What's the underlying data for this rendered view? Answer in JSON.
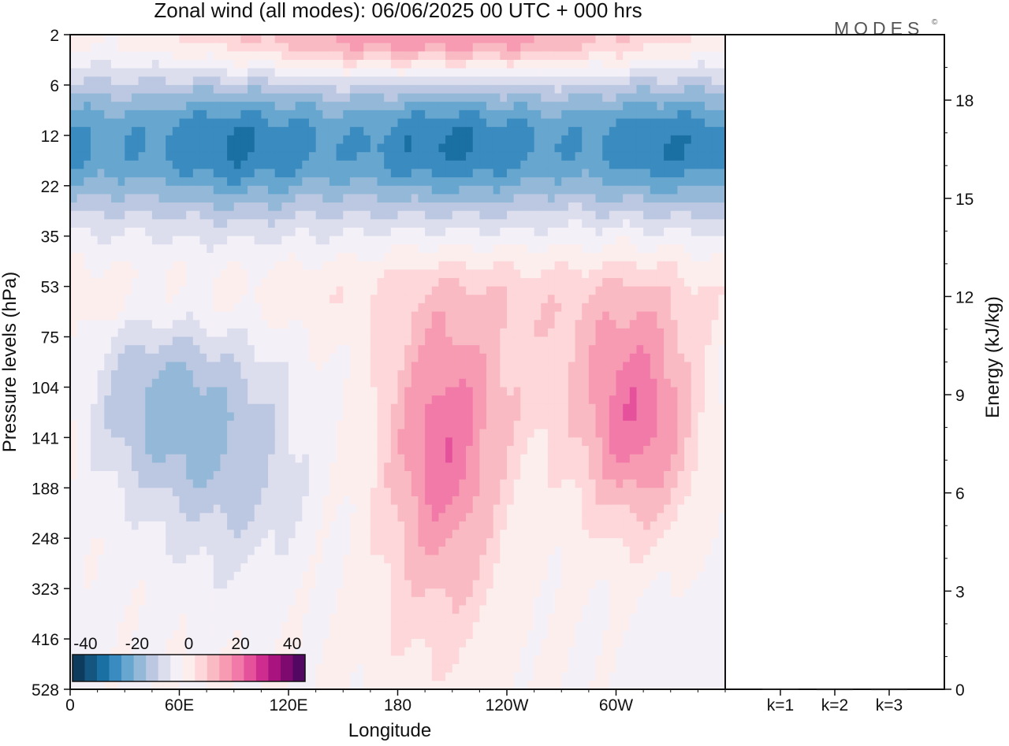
{
  "title": "Zonal wind (all modes):  06/06/2025  00 UTC  + 000 hrs",
  "logo_text": "MODES",
  "logo_mark": "©",
  "chart_data": [
    {
      "type": "heatmap",
      "title": "Zonal wind (all modes):  06/06/2025  00 UTC  + 000 hrs",
      "xlabel": "Longitude",
      "ylabel": "Pressure levels (hPa)",
      "x_ticks": [
        "0",
        "60E",
        "120E",
        "180",
        "120W",
        "60W"
      ],
      "y_ticks": [
        "2",
        "6",
        "12",
        "22",
        "35",
        "53",
        "75",
        "104",
        "141",
        "188",
        "248",
        "323",
        "416",
        "528"
      ],
      "xlim": [
        "0",
        "360"
      ],
      "colorbar": {
        "ticks": [
          "-40",
          "-20",
          "0",
          "20",
          "40"
        ],
        "range": [
          -45,
          45
        ],
        "step": 5,
        "colors": [
          "#0d3b5e",
          "#14567f",
          "#1a6fa3",
          "#3a8bc0",
          "#67a6cf",
          "#94b9d8",
          "#bcc8e1",
          "#dcdeee",
          "#f4f0f7",
          "#fdeeee",
          "#fdd7d9",
          "#f9bac3",
          "#f79bb3",
          "#f27aa8",
          "#e6519c",
          "#cf2c8f",
          "#a9137f",
          "#7e0a6f",
          "#520863"
        ]
      },
      "features": [
        {
          "label": "easterly core (stratosphere)",
          "lon_range": [
            0,
            360
          ],
          "level_range": [
            "6",
            "35"
          ],
          "min_value": -30
        },
        {
          "label": "westerly jet",
          "lon_center": 203,
          "level": "141",
          "max_value": 25
        },
        {
          "label": "westerly jet",
          "lon_center": 312,
          "level": "104",
          "max_value": 25
        },
        {
          "label": "upper westerlies",
          "lon_range": [
            60,
            330
          ],
          "level": "2",
          "max_value": 20
        },
        {
          "label": "easterly region",
          "lon_center": 45,
          "level": "104",
          "min_value": -15
        },
        {
          "label": "easterly region",
          "lon_center": 85,
          "level": "141",
          "min_value": -15
        }
      ]
    },
    {
      "type": "bar",
      "categories": [
        "k=1",
        "k=2",
        "k=3"
      ],
      "values": [
        0.02,
        0.01,
        0.01
      ],
      "ylabel": "Energy (kJ/kg)",
      "ylim": [
        0,
        20
      ],
      "y_ticks": [
        "0",
        "3",
        "6",
        "9",
        "12",
        "15",
        "18"
      ]
    }
  ]
}
